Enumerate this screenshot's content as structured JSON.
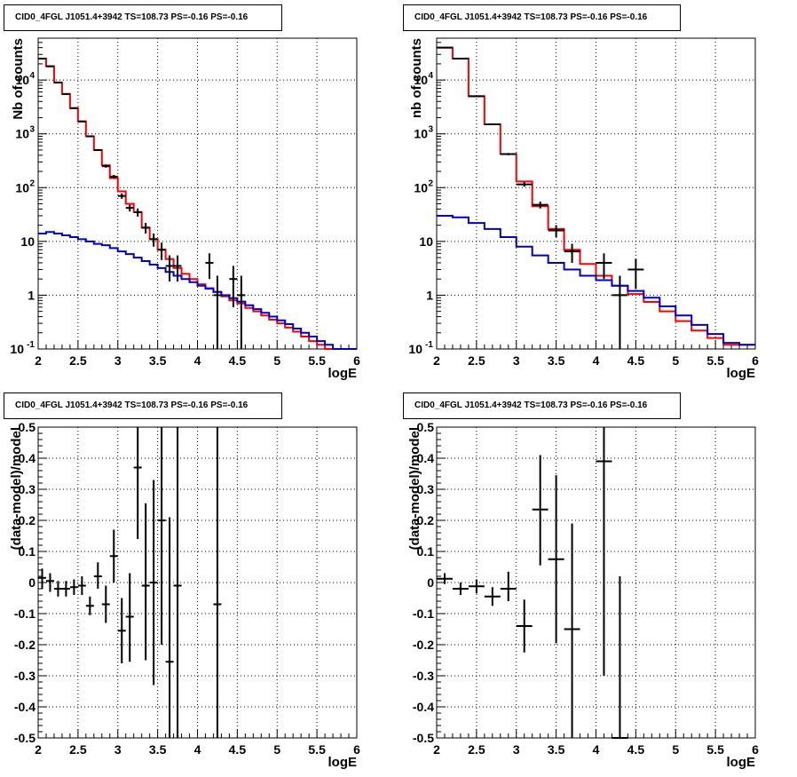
{
  "chart_data": [
    {
      "type": "line",
      "title": "CID0_4FGL J1051.4+3942 TS=108.73 PS=-0.16 PS=-0.16",
      "xlabel": "logE",
      "ylabel": "Nb of counts",
      "xlim": [
        2,
        6
      ],
      "ylim": [
        0.1,
        60000
      ],
      "yscale": "log",
      "grid": true,
      "x_ticks": [
        "2",
        "2.5",
        "3",
        "3.5",
        "4",
        "4.5",
        "5",
        "5.5",
        "6"
      ],
      "y_ticks": [
        {
          "value": 0.1,
          "label": "10",
          "exp": "-1"
        },
        {
          "value": 1,
          "label": "1",
          "exp": ""
        },
        {
          "value": 10,
          "label": "10",
          "exp": ""
        },
        {
          "value": 100,
          "label": "10",
          "exp": "2"
        },
        {
          "value": 1000,
          "label": "10",
          "exp": "3"
        },
        {
          "value": 10000,
          "label": "10",
          "exp": "4"
        }
      ],
      "bin_edges": [
        2.0,
        2.1,
        2.2,
        2.3,
        2.4,
        2.5,
        2.6,
        2.7,
        2.8,
        2.9,
        3.0,
        3.1,
        3.2,
        3.3,
        3.4,
        3.5,
        3.6,
        3.7,
        3.8,
        3.9,
        4.0,
        4.1,
        4.2,
        4.3,
        4.4,
        4.5,
        4.6,
        4.7,
        4.8,
        4.9,
        5.0,
        5.1,
        5.2,
        5.3,
        5.4,
        5.5,
        5.6,
        5.7,
        5.8,
        5.9,
        6.0
      ],
      "series": [
        {
          "name": "",
          "color": "#ff0000",
          "style": "histogram",
          "values": [
            25000,
            18000,
            9000,
            5500,
            3000,
            1700,
            900,
            500,
            260,
            150,
            85,
            50,
            35,
            18,
            11,
            7,
            4.7,
            3.2,
            2.5,
            2.0,
            1.6,
            1.35,
            1.15,
            0.95,
            0.8,
            0.7,
            0.58,
            0.5,
            0.42,
            0.35,
            0.3,
            0.25,
            0.21,
            0.17,
            0.14,
            0.12,
            0.1,
            0.1,
            0.1,
            0.1
          ]
        },
        {
          "name": "",
          "color": "#0000cc",
          "style": "histogram",
          "values": [
            14,
            15,
            14,
            13,
            12,
            11,
            10,
            9,
            8.5,
            7.5,
            6.5,
            5.8,
            5,
            4.3,
            3.7,
            3.2,
            2.7,
            2.3,
            2,
            1.75,
            1.5,
            1.32,
            1.15,
            1,
            0.88,
            0.76,
            0.65,
            0.55,
            0.47,
            0.4,
            0.34,
            0.29,
            0.24,
            0.2,
            0.17,
            0.14,
            0.12,
            0.1,
            0.1,
            0.1
          ]
        },
        {
          "name": "",
          "color": "#000000",
          "style": "points",
          "points": [
            {
              "x": 2.05,
              "y": 25000,
              "lo": 24800,
              "hi": 25200
            },
            {
              "x": 2.15,
              "y": 18000,
              "lo": 17800,
              "hi": 18200
            },
            {
              "x": 2.25,
              "y": 9000,
              "lo": 8800,
              "hi": 9200
            },
            {
              "x": 2.35,
              "y": 5500,
              "lo": 5350,
              "hi": 5650
            },
            {
              "x": 2.45,
              "y": 3000,
              "lo": 2900,
              "hi": 3100
            },
            {
              "x": 2.55,
              "y": 1700,
              "lo": 1650,
              "hi": 1750
            },
            {
              "x": 2.65,
              "y": 900,
              "lo": 870,
              "hi": 930
            },
            {
              "x": 2.75,
              "y": 500,
              "lo": 480,
              "hi": 520
            },
            {
              "x": 2.85,
              "y": 250,
              "lo": 235,
              "hi": 265
            },
            {
              "x": 2.95,
              "y": 160,
              "lo": 148,
              "hi": 172
            },
            {
              "x": 3.05,
              "y": 70,
              "lo": 62,
              "hi": 78
            },
            {
              "x": 3.15,
              "y": 42,
              "lo": 36,
              "hi": 48
            },
            {
              "x": 3.25,
              "y": 35,
              "lo": 29,
              "hi": 41
            },
            {
              "x": 3.35,
              "y": 18,
              "lo": 14,
              "hi": 22
            },
            {
              "x": 3.45,
              "y": 11,
              "lo": 8,
              "hi": 14
            },
            {
              "x": 3.55,
              "y": 7,
              "lo": 4.5,
              "hi": 9.5
            },
            {
              "x": 3.65,
              "y": 3.5,
              "lo": 1.8,
              "hi": 5.5
            },
            {
              "x": 3.75,
              "y": 3.5,
              "lo": 1.8,
              "hi": 5.5
            },
            {
              "x": 4.15,
              "y": 4.0,
              "lo": 2.0,
              "hi": 6.0
            },
            {
              "x": 4.25,
              "y": 1.0,
              "lo": 0.1,
              "hi": 2.3
            },
            {
              "x": 4.45,
              "y": 2.0,
              "lo": 0.6,
              "hi": 3.5
            },
            {
              "x": 4.55,
              "y": 1.0,
              "lo": 0.1,
              "hi": 2.3
            }
          ]
        }
      ]
    },
    {
      "type": "line",
      "title": "CID0_4FGL J1051.4+3942 TS=108.73 PS=-0.16 PS=-0.16",
      "xlabel": "logE",
      "ylabel": "nb of counts",
      "xlim": [
        2,
        6
      ],
      "ylim": [
        0.1,
        60000
      ],
      "yscale": "log",
      "grid": true,
      "x_ticks": [
        "2",
        "2.5",
        "3",
        "3.5",
        "4",
        "4.5",
        "5",
        "5.5",
        "6"
      ],
      "y_ticks": [
        {
          "value": 0.1,
          "label": "10",
          "exp": "-1"
        },
        {
          "value": 1,
          "label": "1",
          "exp": ""
        },
        {
          "value": 10,
          "label": "10",
          "exp": ""
        },
        {
          "value": 100,
          "label": "10",
          "exp": "2"
        },
        {
          "value": 1000,
          "label": "10",
          "exp": "3"
        },
        {
          "value": 10000,
          "label": "10",
          "exp": "4"
        }
      ],
      "bin_edges": [
        2.0,
        2.2,
        2.4,
        2.6,
        2.8,
        3.0,
        3.2,
        3.4,
        3.6,
        3.8,
        4.0,
        4.2,
        4.4,
        4.6,
        4.8,
        5.0,
        5.2,
        5.4,
        5.6,
        5.8,
        6.0
      ],
      "series": [
        {
          "name": "",
          "color": "#ff0000",
          "style": "histogram",
          "values": [
            40000,
            25000,
            5000,
            1500,
            420,
            130,
            45,
            17,
            7,
            3.8,
            2.3,
            1.5,
            1.05,
            0.75,
            0.5,
            0.33,
            0.22,
            0.16,
            0.12,
            0.12
          ]
        },
        {
          "name": "",
          "color": "#0000cc",
          "style": "histogram",
          "values": [
            30,
            28,
            22,
            17,
            12,
            8,
            5.5,
            4,
            3,
            2.3,
            1.9,
            1.5,
            1.2,
            0.9,
            0.62,
            0.42,
            0.28,
            0.19,
            0.13,
            0.12
          ]
        },
        {
          "name": "",
          "color": "#000000",
          "style": "points",
          "points": [
            {
              "x": 2.1,
              "y": 40000,
              "lo": 39800,
              "hi": 40200
            },
            {
              "x": 2.3,
              "y": 25000,
              "lo": 24800,
              "hi": 25200
            },
            {
              "x": 2.5,
              "y": 5000,
              "lo": 4900,
              "hi": 5100
            },
            {
              "x": 2.7,
              "y": 1500,
              "lo": 1460,
              "hi": 1540
            },
            {
              "x": 2.9,
              "y": 420,
              "lo": 400,
              "hi": 440
            },
            {
              "x": 3.1,
              "y": 115,
              "lo": 104,
              "hi": 126
            },
            {
              "x": 3.3,
              "y": 48,
              "lo": 41,
              "hi": 55
            },
            {
              "x": 3.5,
              "y": 16,
              "lo": 12,
              "hi": 20
            },
            {
              "x": 3.7,
              "y": 6.5,
              "lo": 4.0,
              "hi": 9.0
            },
            {
              "x": 4.1,
              "y": 4.0,
              "lo": 2.0,
              "hi": 6.0
            },
            {
              "x": 4.3,
              "y": 1.0,
              "lo": 0.1,
              "hi": 2.3
            },
            {
              "x": 4.5,
              "y": 3.0,
              "lo": 1.3,
              "hi": 4.7
            }
          ]
        }
      ]
    },
    {
      "type": "scatter",
      "title": "CID0_4FGL J1051.4+3942 TS=108.73 PS=-0.16 PS=-0.16",
      "xlabel": "logE",
      "ylabel": "(data-model)/model",
      "xlim": [
        2,
        6
      ],
      "ylim": [
        -0.5,
        0.5
      ],
      "grid": true,
      "x_ticks": [
        "2",
        "2.5",
        "3",
        "3.5",
        "4",
        "4.5",
        "5",
        "5.5",
        "6"
      ],
      "y_ticks": [
        "-0.5",
        "-0.4",
        "-0.3",
        "-0.2",
        "-0.1",
        "0",
        "0.1",
        "0.2",
        "0.3",
        "0.4",
        "0.5"
      ],
      "xerr": 0.05,
      "series": [
        {
          "name": "",
          "color": "#000000",
          "points": [
            {
              "x": 2.05,
              "y": 0.015,
              "lo": -0.02,
              "hi": 0.045
            },
            {
              "x": 2.15,
              "y": 0.005,
              "lo": -0.03,
              "hi": 0.03
            },
            {
              "x": 2.25,
              "y": -0.02,
              "lo": -0.045,
              "hi": 0.005
            },
            {
              "x": 2.35,
              "y": -0.02,
              "lo": -0.045,
              "hi": 0.005
            },
            {
              "x": 2.45,
              "y": -0.015,
              "lo": -0.04,
              "hi": 0.01
            },
            {
              "x": 2.55,
              "y": -0.01,
              "lo": -0.04,
              "hi": 0.02
            },
            {
              "x": 2.65,
              "y": -0.075,
              "lo": -0.105,
              "hi": -0.045
            },
            {
              "x": 2.75,
              "y": 0.02,
              "lo": -0.02,
              "hi": 0.065
            },
            {
              "x": 2.85,
              "y": -0.07,
              "lo": -0.13,
              "hi": -0.01
            },
            {
              "x": 2.95,
              "y": 0.085,
              "lo": 0.0,
              "hi": 0.17
            },
            {
              "x": 3.05,
              "y": -0.155,
              "lo": -0.26,
              "hi": -0.05
            },
            {
              "x": 3.15,
              "y": -0.11,
              "lo": -0.255,
              "hi": 0.03
            },
            {
              "x": 3.25,
              "y": 0.37,
              "lo": 0.14,
              "hi": 0.5
            },
            {
              "x": 3.35,
              "y": -0.01,
              "lo": -0.25,
              "hi": 0.255
            },
            {
              "x": 3.45,
              "y": 0.0,
              "lo": -0.33,
              "hi": 0.33
            },
            {
              "x": 3.55,
              "y": 0.2,
              "lo": -0.2,
              "hi": 0.5
            },
            {
              "x": 3.65,
              "y": -0.255,
              "lo": -0.5,
              "hi": 0.21
            },
            {
              "x": 3.75,
              "y": -0.01,
              "lo": -0.5,
              "hi": 0.5
            },
            {
              "x": 4.25,
              "y": -0.07,
              "lo": -0.5,
              "hi": 0.5
            }
          ]
        }
      ]
    },
    {
      "type": "scatter",
      "title": "CID0_4FGL J1051.4+3942 TS=108.73 PS=-0.16 PS=-0.16",
      "xlabel": "logE",
      "ylabel": "(data-model)/model",
      "xlim": [
        2,
        6
      ],
      "ylim": [
        -0.5,
        0.5
      ],
      "grid": true,
      "x_ticks": [
        "2",
        "2.5",
        "3",
        "3.5",
        "4",
        "4.5",
        "5",
        "5.5",
        "6"
      ],
      "y_ticks": [
        "-0.5",
        "-0.4",
        "-0.3",
        "-0.2",
        "-0.1",
        "0",
        "0.1",
        "0.2",
        "0.3",
        "0.4",
        "0.5"
      ],
      "xerr": 0.1,
      "series": [
        {
          "name": "",
          "color": "#000000",
          "points": [
            {
              "x": 2.1,
              "y": 0.012,
              "lo": -0.005,
              "hi": 0.03
            },
            {
              "x": 2.3,
              "y": -0.02,
              "lo": -0.04,
              "hi": 0.0
            },
            {
              "x": 2.5,
              "y": -0.012,
              "lo": -0.035,
              "hi": 0.01
            },
            {
              "x": 2.7,
              "y": -0.045,
              "lo": -0.075,
              "hi": -0.015
            },
            {
              "x": 2.9,
              "y": -0.02,
              "lo": -0.06,
              "hi": 0.035
            },
            {
              "x": 3.1,
              "y": -0.14,
              "lo": -0.225,
              "hi": -0.055
            },
            {
              "x": 3.3,
              "y": 0.235,
              "lo": 0.055,
              "hi": 0.41
            },
            {
              "x": 3.5,
              "y": 0.075,
              "lo": -0.195,
              "hi": 0.345
            },
            {
              "x": 3.7,
              "y": -0.15,
              "lo": -0.5,
              "hi": 0.19
            },
            {
              "x": 4.1,
              "y": 0.39,
              "lo": -0.3,
              "hi": 0.5
            },
            {
              "x": 4.3,
              "y": -0.5,
              "lo": -0.5,
              "hi": 0.02
            }
          ]
        }
      ]
    }
  ]
}
